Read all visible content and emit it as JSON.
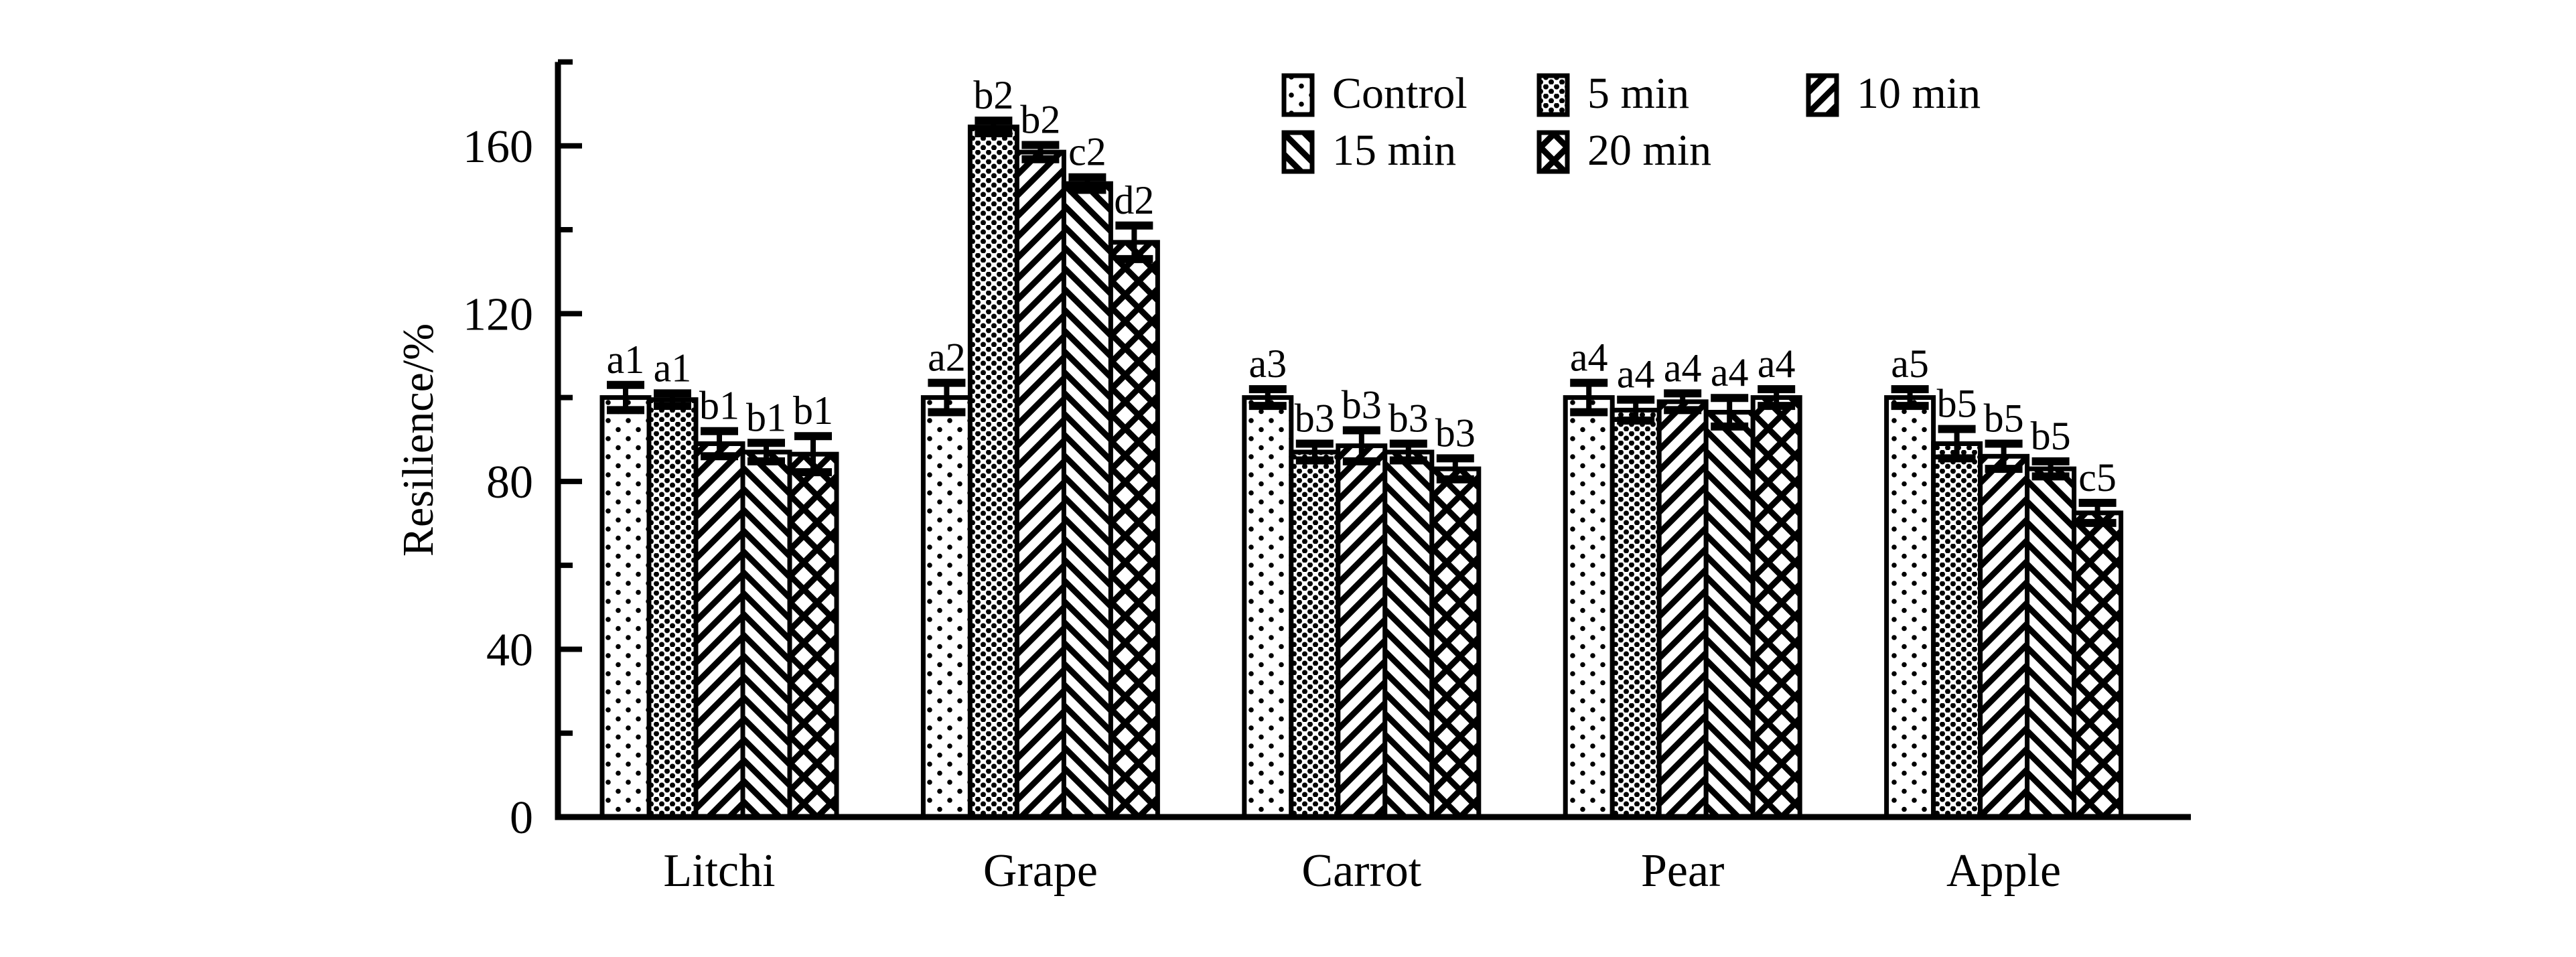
{
  "figure": {
    "background_color": "#ffffff",
    "ink_color": "#000000"
  },
  "chart_data": {
    "type": "bar",
    "title": "",
    "xlabel": "",
    "ylabel": "Resilience/%",
    "ylim": [
      0,
      180
    ],
    "yticks_major": [
      0,
      40,
      80,
      120,
      160
    ],
    "yticks_minor": [
      20,
      60,
      100,
      140,
      180
    ],
    "grid": false,
    "legend_position": "top-right-inside",
    "legend_rows": [
      [
        "Control",
        "5 min",
        "10 min"
      ],
      [
        "15 min",
        "20 min"
      ]
    ],
    "categories": [
      "Litchi",
      "Grape",
      "Carrot",
      "Pear",
      "Apple"
    ],
    "series": [
      {
        "name": "Control",
        "pattern": "sparse-dots",
        "values": [
          100,
          100,
          100,
          100,
          100
        ],
        "errors": [
          3.0,
          3.5,
          2.0,
          3.5,
          2.0
        ],
        "sig_labels": [
          "a1",
          "a2",
          "a3",
          "a4",
          "a5"
        ]
      },
      {
        "name": "5 min",
        "pattern": "dense-dots",
        "values": [
          99.5,
          164.5,
          87,
          97,
          89
        ],
        "errors": [
          1.5,
          1.5,
          2.0,
          2.5,
          3.5
        ],
        "sig_labels": [
          "a1",
          "b2",
          "b3",
          "a4",
          "b5"
        ]
      },
      {
        "name": "10 min",
        "pattern": "diagonal-up",
        "values": [
          89,
          158.5,
          88.5,
          99,
          86
        ],
        "errors": [
          3.0,
          1.7,
          3.7,
          2.0,
          3.0
        ],
        "sig_labels": [
          "b1",
          "b2",
          "b3",
          "a4",
          "b5"
        ]
      },
      {
        "name": "15 min",
        "pattern": "diagonal-down",
        "values": [
          87,
          151,
          87,
          96.5,
          83
        ],
        "errors": [
          2.2,
          1.5,
          2.0,
          3.4,
          1.8
        ],
        "sig_labels": [
          "b1",
          "c2",
          "b3",
          "a4",
          "b5"
        ]
      },
      {
        "name": "20 min",
        "pattern": "crosshatch",
        "values": [
          86.5,
          137,
          83,
          100,
          72.5
        ],
        "errors": [
          4.3,
          4.0,
          2.5,
          2.0,
          2.4
        ],
        "sig_labels": [
          "b1",
          "d2",
          "b3",
          "a4",
          "c5"
        ]
      }
    ]
  }
}
